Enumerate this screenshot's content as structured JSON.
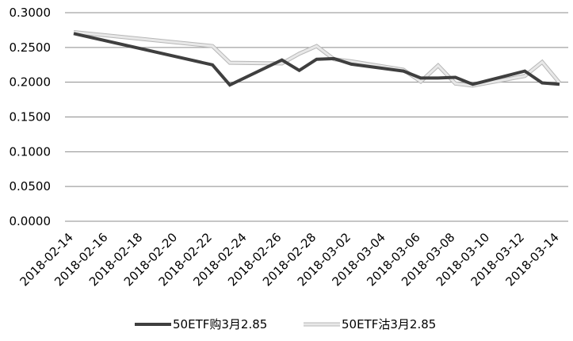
{
  "chart_data": {
    "type": "line",
    "title": "",
    "xlabel": "",
    "ylabel": "",
    "ylim": [
      0,
      0.3
    ],
    "y_ticks": [
      "0.0000",
      "0.0500",
      "0.1000",
      "0.1500",
      "0.2000",
      "0.2500",
      "0.3000"
    ],
    "x_tick_labels": [
      "2018-02-14",
      "2018-02-16",
      "2018-02-18",
      "2018-02-20",
      "2018-02-22",
      "2018-02-24",
      "2018-02-26",
      "2018-02-28",
      "2018-03-02",
      "2018-03-04",
      "2018-03-06",
      "2018-03-08",
      "2018-03-10",
      "2018-03-12",
      "2018-03-14"
    ],
    "x_range": [
      "2018-02-14",
      "2018-03-14"
    ],
    "grid": "horizontal",
    "legend_position": "bottom",
    "series": [
      {
        "name": "50ETF购3月2.85",
        "color": "#3f3f3f",
        "points": [
          [
            "2018-02-14",
            0.27
          ],
          [
            "2018-02-22",
            0.225
          ],
          [
            "2018-02-23",
            0.196
          ],
          [
            "2018-02-26",
            0.232
          ],
          [
            "2018-02-27",
            0.217
          ],
          [
            "2018-02-28",
            0.233
          ],
          [
            "2018-03-01",
            0.234
          ],
          [
            "2018-03-02",
            0.226
          ],
          [
            "2018-03-05",
            0.216
          ],
          [
            "2018-03-06",
            0.206
          ],
          [
            "2018-03-07",
            0.206
          ],
          [
            "2018-03-08",
            0.207
          ],
          [
            "2018-03-09",
            0.197
          ],
          [
            "2018-03-12",
            0.216
          ],
          [
            "2018-03-13",
            0.199
          ],
          [
            "2018-03-14",
            0.197
          ]
        ]
      },
      {
        "name": "50ETF沽3月2.85",
        "color": "#e8e8e8",
        "points": [
          [
            "2018-02-14",
            0.272
          ],
          [
            "2018-02-22",
            0.252
          ],
          [
            "2018-02-23",
            0.228
          ],
          [
            "2018-02-26",
            0.227
          ],
          [
            "2018-02-27",
            0.241
          ],
          [
            "2018-02-28",
            0.252
          ],
          [
            "2018-03-01",
            0.233
          ],
          [
            "2018-03-02",
            0.23
          ],
          [
            "2018-03-05",
            0.218
          ],
          [
            "2018-03-06",
            0.201
          ],
          [
            "2018-03-07",
            0.224
          ],
          [
            "2018-03-08",
            0.198
          ],
          [
            "2018-03-09",
            0.195
          ],
          [
            "2018-03-12",
            0.209
          ],
          [
            "2018-03-13",
            0.229
          ],
          [
            "2018-03-14",
            0.199
          ]
        ]
      }
    ]
  }
}
